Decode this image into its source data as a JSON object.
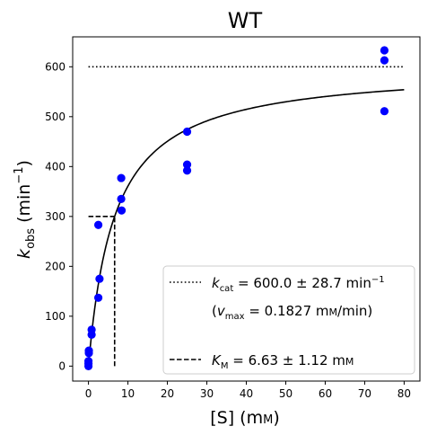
{
  "chart_data": {
    "type": "scatter",
    "title": "WT",
    "xlabel_main": "[S] (m",
    "xlabel_unit": "M",
    "xlabel_close": ")",
    "ylabel_k": "k",
    "ylabel_sub": "obs",
    "ylabel_rest": " (min",
    "ylabel_sup": "−1",
    "ylabel_close": ")",
    "xlim": [
      -4,
      84
    ],
    "ylim": [
      -30,
      660
    ],
    "xticks": [
      0,
      10,
      20,
      30,
      40,
      50,
      60,
      70,
      80
    ],
    "yticks": [
      0,
      100,
      200,
      300,
      400,
      500,
      600
    ],
    "grid": false,
    "legend_position": "lower-right",
    "colors": {
      "points": "#0000ff",
      "lines": "#000000"
    },
    "fit": {
      "kcat": 600.0,
      "km": 6.63,
      "x_range": [
        0,
        80
      ]
    },
    "series": [
      {
        "kind": "points",
        "x": [
          0,
          0,
          0,
          0.1,
          0.1,
          0.8,
          0.8,
          2.5,
          2.5,
          2.8,
          8.3,
          8.3,
          8.4,
          25,
          25,
          25,
          75,
          75,
          75
        ],
        "y": [
          0,
          5,
          10,
          26,
          31,
          63,
          73,
          283,
          137,
          175,
          377,
          335,
          312,
          470,
          404,
          392,
          633,
          613,
          511
        ]
      }
    ],
    "reference_lines": {
      "kcat_line": {
        "y": 600,
        "x_range": [
          0,
          80
        ],
        "style": "dotted"
      },
      "km_horizontal": {
        "y": 300,
        "x_range": [
          0,
          6.63
        ],
        "style": "dashed"
      },
      "km_vertical": {
        "x": 6.63,
        "y_range": [
          0,
          300
        ],
        "style": "dashed"
      }
    },
    "legend": {
      "kcat": {
        "sym": "k",
        "sub": "cat",
        "value": " = 600.0 ± 28.7 min",
        "sup": "−1"
      },
      "vmax": {
        "open": "(",
        "sym": "v",
        "sub": "max",
        "value": " = 0.1827 m",
        "unit": "M",
        "tail": "/min)"
      },
      "km": {
        "sym": "K",
        "sub": "M",
        "value": " = 6.63 ± 1.12 m",
        "unit": "M"
      }
    }
  }
}
